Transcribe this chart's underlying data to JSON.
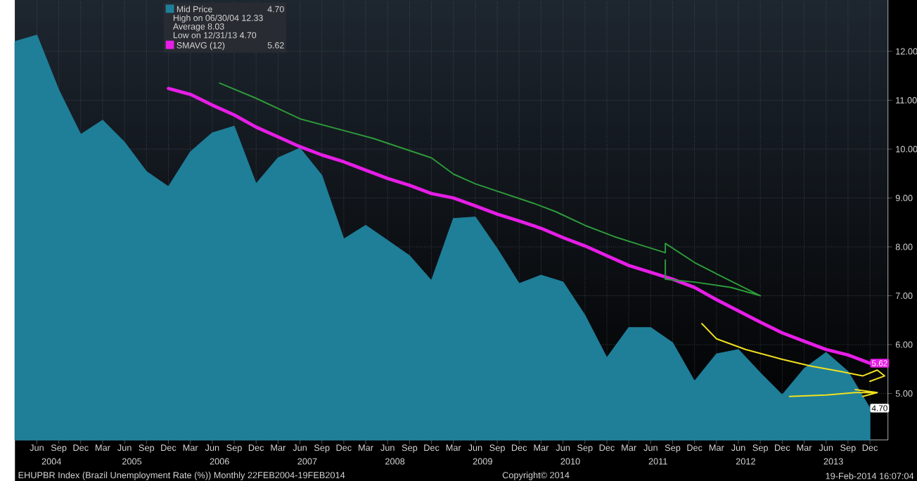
{
  "chart_data": {
    "type": "area",
    "title": "EHUPBR Index (Brazil Unemployment Rate (%)) Monthly 22FEB2004-19FEB2014",
    "x": [
      "2004-03",
      "2004-06",
      "2004-09",
      "2004-12",
      "2005-03",
      "2005-06",
      "2005-09",
      "2005-12",
      "2006-03",
      "2006-06",
      "2006-09",
      "2006-12",
      "2007-03",
      "2007-06",
      "2007-09",
      "2007-12",
      "2008-03",
      "2008-06",
      "2008-09",
      "2008-12",
      "2009-03",
      "2009-06",
      "2009-09",
      "2009-12",
      "2010-03",
      "2010-06",
      "2010-09",
      "2010-12",
      "2011-03",
      "2011-06",
      "2011-09",
      "2011-12",
      "2012-03",
      "2012-06",
      "2012-09",
      "2012-12",
      "2013-03",
      "2013-06",
      "2013-09",
      "2013-12"
    ],
    "series": [
      {
        "name": "Mid Price",
        "color": "#1f7f99",
        "values": [
          12.2,
          12.33,
          11.21,
          10.3,
          10.59,
          10.14,
          9.54,
          9.23,
          9.94,
          10.33,
          10.47,
          9.29,
          9.82,
          10.02,
          9.46,
          8.16,
          8.44,
          8.13,
          7.82,
          7.31,
          8.58,
          8.61,
          7.96,
          7.25,
          7.42,
          7.28,
          6.6,
          5.73,
          6.35,
          6.35,
          6.04,
          5.25,
          5.81,
          5.9,
          5.42,
          4.97,
          5.51,
          5.84,
          5.45,
          4.7
        ],
        "value_labels": [
          null,
          null,
          null,
          null,
          null,
          null,
          null,
          null,
          null,
          null,
          null,
          null,
          null,
          null,
          null,
          null,
          null,
          null,
          null,
          null,
          null,
          null,
          null,
          null,
          null,
          null,
          null,
          null,
          null,
          null,
          null,
          null,
          null,
          null,
          null,
          null,
          null,
          null,
          null,
          "4.70"
        ]
      },
      {
        "name": "SMAVG (12)",
        "type": "line",
        "color": "#e61ee6",
        "x": [
          "2005-12",
          "2006-03",
          "2006-06",
          "2006-09",
          "2006-12",
          "2007-03",
          "2007-06",
          "2007-09",
          "2007-12",
          "2008-03",
          "2008-06",
          "2008-09",
          "2008-12",
          "2009-03",
          "2009-06",
          "2009-09",
          "2009-12",
          "2010-03",
          "2010-06",
          "2010-09",
          "2010-12",
          "2011-03",
          "2011-06",
          "2011-09",
          "2011-12",
          "2012-03",
          "2012-06",
          "2012-09",
          "2012-12",
          "2013-03",
          "2013-06",
          "2013-09",
          "2013-12"
        ],
        "values": [
          11.24,
          11.12,
          10.9,
          10.7,
          10.45,
          10.25,
          10.05,
          9.88,
          9.74,
          9.57,
          9.4,
          9.26,
          9.09,
          9.0,
          8.84,
          8.67,
          8.53,
          8.38,
          8.19,
          8.02,
          7.82,
          7.62,
          7.48,
          7.34,
          7.17,
          6.92,
          6.69,
          6.46,
          6.24,
          6.07,
          5.9,
          5.79,
          5.62
        ],
        "value_labels": [
          null,
          null,
          null,
          null,
          null,
          null,
          null,
          null,
          null,
          null,
          null,
          null,
          null,
          null,
          null,
          null,
          null,
          null,
          null,
          null,
          null,
          null,
          null,
          null,
          null,
          null,
          null,
          null,
          null,
          null,
          null,
          null,
          "5.62"
        ]
      },
      {
        "type": "line",
        "color": "#2e9a3a",
        "x": [
          "2006-07",
          "2006-12",
          "2007-04",
          "2007-06",
          "2007-11",
          "2008-04",
          "2008-08",
          "2008-12",
          "2009-03",
          "2009-06",
          "2009-10",
          "2010-02",
          "2010-05",
          "2010-09",
          "2011-01",
          "2011-05",
          "2011-08",
          "2011-08",
          "2011-12",
          "2012-03",
          "2012-09",
          "2012-05",
          "2011-12",
          "2011-08",
          "2011-08"
        ],
        "values": [
          11.35,
          11.04,
          10.76,
          10.62,
          10.42,
          10.22,
          10.02,
          9.82,
          9.49,
          9.29,
          9.09,
          8.89,
          8.72,
          8.44,
          8.21,
          8.02,
          7.88,
          8.07,
          7.68,
          7.45,
          7.0,
          7.17,
          7.28,
          7.34,
          7.73
        ]
      },
      {
        "type": "line",
        "color": "#f0e020",
        "x": [
          "2012-01",
          "2012-03",
          "2012-07",
          "2012-12",
          "2013-04",
          "2013-08",
          "2013-11",
          "2014-01",
          "2014-02",
          "2013-12"
        ],
        "values": [
          6.43,
          6.12,
          5.9,
          5.7,
          5.56,
          5.45,
          5.36,
          5.48,
          5.36,
          5.25
        ]
      },
      {
        "type": "line",
        "color": "#f0e020",
        "x": [
          "2013-01",
          "2013-06",
          "2013-10",
          "2014-01",
          "2013-10",
          "2014-01",
          "2013-11"
        ],
        "values": [
          4.94,
          4.97,
          5.02,
          5.02,
          5.08,
          5.02,
          4.94
        ]
      }
    ],
    "annotations": [
      "High on 06/30/04 12.33",
      "Average 8.03",
      "Low on 12/31/13 4.70",
      "2004",
      "2005",
      "2006",
      "2007",
      "2008",
      "2009",
      "2010",
      "2011",
      "2012",
      "2013",
      "Copyright© 2014",
      "19-Feb-2014 16:07:04"
    ],
    "xlim": [
      "2004-03",
      "2014-02-15"
    ],
    "xticks": [
      {
        "value": "2004-06",
        "label": "Jun"
      },
      {
        "value": "2004-09",
        "label": "Sep"
      },
      {
        "value": "2004-12",
        "label": "Dec"
      },
      {
        "value": "2005-03",
        "label": "Mar"
      },
      {
        "value": "2005-06",
        "label": "Jun"
      },
      {
        "value": "2005-09",
        "label": "Sep"
      },
      {
        "value": "2005-12",
        "label": "Dec"
      },
      {
        "value": "2006-03",
        "label": "Mar"
      },
      {
        "value": "2006-06",
        "label": "Jun"
      },
      {
        "value": "2006-09",
        "label": "Sep"
      },
      {
        "value": "2006-12",
        "label": "Dec"
      },
      {
        "value": "2007-03",
        "label": "Mar"
      },
      {
        "value": "2007-06",
        "label": "Jun"
      },
      {
        "value": "2007-09",
        "label": "Sep"
      },
      {
        "value": "2007-12",
        "label": "Dec"
      },
      {
        "value": "2008-03",
        "label": "Mar"
      },
      {
        "value": "2008-06",
        "label": "Jun"
      },
      {
        "value": "2008-09",
        "label": "Sep"
      },
      {
        "value": "2008-12",
        "label": "Dec"
      },
      {
        "value": "2009-03",
        "label": "Mar"
      },
      {
        "value": "2009-06",
        "label": "Jun"
      },
      {
        "value": "2009-09",
        "label": "Sep"
      },
      {
        "value": "2009-12",
        "label": "Dec"
      },
      {
        "value": "2010-03",
        "label": "Mar"
      },
      {
        "value": "2010-06",
        "label": "Jun"
      },
      {
        "value": "2010-09",
        "label": "Sep"
      },
      {
        "value": "2010-12",
        "label": "Dec"
      },
      {
        "value": "2011-03",
        "label": "Mar"
      },
      {
        "value": "2011-06",
        "label": "Jun"
      },
      {
        "value": "2011-09",
        "label": "Sep"
      },
      {
        "value": "2011-12",
        "label": "Dec"
      },
      {
        "value": "2012-03",
        "label": "Mar"
      },
      {
        "value": "2012-06",
        "label": "Jun"
      },
      {
        "value": "2012-09",
        "label": "Sep"
      },
      {
        "value": "2012-12",
        "label": "Dec"
      },
      {
        "value": "2013-03",
        "label": "Mar"
      },
      {
        "value": "2013-06",
        "label": "Jun"
      },
      {
        "value": "2013-09",
        "label": "Sep"
      },
      {
        "value": "2013-12",
        "label": "Dec"
      }
    ],
    "ylim": [
      4.05,
      13.05
    ],
    "yticks": [
      {
        "value": 5,
        "label": "5.00"
      },
      {
        "value": 6,
        "label": "6.00"
      },
      {
        "value": 7,
        "label": "7.00"
      },
      {
        "value": 8,
        "label": "8.00"
      },
      {
        "value": 9,
        "label": "9.00"
      },
      {
        "value": 10,
        "label": "10.00"
      },
      {
        "value": 11,
        "label": "11.00"
      },
      {
        "value": 12,
        "label": "12.00"
      }
    ],
    "grid": true,
    "legend": "top left"
  }
}
